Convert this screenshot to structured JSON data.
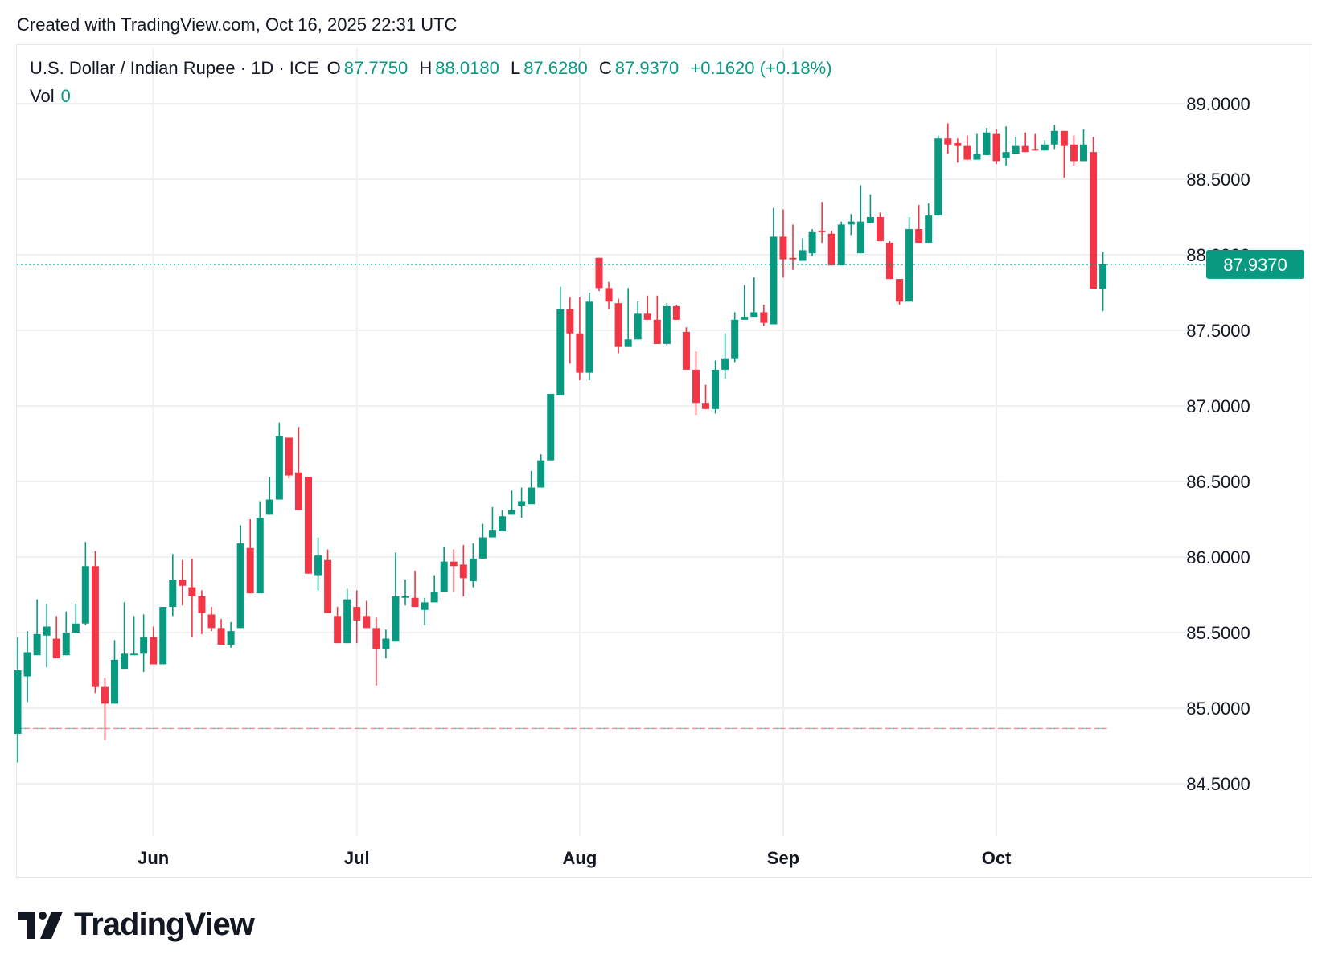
{
  "header": {
    "created_text": "Created with TradingView.com, Oct 16, 2025 22:31 UTC"
  },
  "legend": {
    "symbol": "U.S. Dollar / Indian Rupee · 1D · ICE",
    "open_label": "O",
    "open": "87.7750",
    "high_label": "H",
    "high": "88.0180",
    "low_label": "L",
    "low": "87.6280",
    "close_label": "C",
    "close": "87.9370",
    "change": "+0.1620 (+0.18%)",
    "vol_label": "Vol",
    "vol": "0"
  },
  "logo": {
    "text": "TradingView"
  },
  "colors": {
    "up": "#089981",
    "down": "#f23645",
    "grid": "#f0f0f0",
    "text": "#131722"
  },
  "chart_data": {
    "type": "candlestick",
    "ylim": [
      84.3,
      89.1
    ],
    "y_ticks": [
      "84.5000",
      "85.0000",
      "85.5000",
      "86.0000",
      "86.5000",
      "87.0000",
      "87.5000",
      "88.0000",
      "88.5000",
      "89.0000"
    ],
    "x_ticks": [
      {
        "label": "Jun",
        "date": "2025-06-02"
      },
      {
        "label": "Jul",
        "date": "2025-07-01"
      },
      {
        "label": "Aug",
        "date": "2025-08-01"
      },
      {
        "label": "Sep",
        "date": "2025-09-01"
      },
      {
        "label": "Oct",
        "date": "2025-10-01"
      }
    ],
    "last_price": 87.937,
    "last_price_label": "87.9370",
    "reference_line": 84.865,
    "grid": true,
    "columns": [
      "date",
      "open",
      "high",
      "low",
      "close"
    ],
    "candles": [
      [
        "2025-05-13",
        84.83,
        85.47,
        84.64,
        85.25
      ],
      [
        "2025-05-14",
        85.21,
        85.51,
        85.04,
        85.37
      ],
      [
        "2025-05-15",
        85.35,
        85.72,
        85.35,
        85.49
      ],
      [
        "2025-05-16",
        85.48,
        85.69,
        85.27,
        85.54
      ],
      [
        "2025-05-19",
        85.46,
        85.61,
        85.33,
        85.33
      ],
      [
        "2025-05-20",
        85.35,
        85.64,
        85.35,
        85.5
      ],
      [
        "2025-05-21",
        85.5,
        85.69,
        85.5,
        85.56
      ],
      [
        "2025-05-22",
        85.56,
        86.1,
        85.55,
        85.94
      ],
      [
        "2025-05-23",
        85.94,
        86.04,
        85.1,
        85.14
      ],
      [
        "2025-05-26",
        85.14,
        85.2,
        84.79,
        85.03
      ],
      [
        "2025-05-27",
        85.03,
        85.45,
        85.03,
        85.32
      ],
      [
        "2025-05-28",
        85.26,
        85.7,
        85.26,
        85.36
      ],
      [
        "2025-05-29",
        85.35,
        85.61,
        85.35,
        85.36
      ],
      [
        "2025-05-30",
        85.36,
        85.62,
        85.24,
        85.47
      ],
      [
        "2025-06-02",
        85.47,
        85.54,
        85.29,
        85.29
      ],
      [
        "2025-06-03",
        85.29,
        85.67,
        85.29,
        85.67
      ],
      [
        "2025-06-04",
        85.67,
        86.02,
        85.61,
        85.85
      ],
      [
        "2025-06-05",
        85.85,
        85.98,
        85.68,
        85.81
      ],
      [
        "2025-06-06",
        85.8,
        85.99,
        85.47,
        85.74
      ],
      [
        "2025-06-09",
        85.74,
        85.78,
        85.49,
        85.63
      ],
      [
        "2025-06-10",
        85.62,
        85.67,
        85.51,
        85.53
      ],
      [
        "2025-06-11",
        85.53,
        85.59,
        85.42,
        85.42
      ],
      [
        "2025-06-12",
        85.42,
        85.57,
        85.4,
        85.51
      ],
      [
        "2025-06-13",
        85.53,
        86.21,
        85.53,
        86.09
      ],
      [
        "2025-06-16",
        86.06,
        86.25,
        85.76,
        85.76
      ],
      [
        "2025-06-17",
        85.76,
        86.37,
        85.76,
        86.26
      ],
      [
        "2025-06-18",
        86.28,
        86.53,
        86.28,
        86.38
      ],
      [
        "2025-06-19",
        86.38,
        86.89,
        86.38,
        86.8
      ],
      [
        "2025-06-20",
        86.79,
        86.79,
        86.52,
        86.54
      ],
      [
        "2025-06-23",
        86.56,
        86.86,
        86.31,
        86.31
      ],
      [
        "2025-06-24",
        86.53,
        86.53,
        85.89,
        85.89
      ],
      [
        "2025-06-25",
        85.88,
        86.13,
        85.78,
        86.01
      ],
      [
        "2025-06-26",
        85.98,
        86.05,
        85.63,
        85.63
      ],
      [
        "2025-06-27",
        85.61,
        85.67,
        85.43,
        85.43
      ],
      [
        "2025-06-30",
        85.43,
        85.79,
        85.43,
        85.72
      ],
      [
        "2025-07-01",
        85.67,
        85.78,
        85.43,
        85.58
      ],
      [
        "2025-07-02",
        85.61,
        85.71,
        85.53,
        85.53
      ],
      [
        "2025-07-03",
        85.53,
        85.6,
        85.15,
        85.39
      ],
      [
        "2025-07-04",
        85.39,
        85.52,
        85.33,
        85.46
      ],
      [
        "2025-07-07",
        85.44,
        86.03,
        85.44,
        85.74
      ],
      [
        "2025-07-08",
        85.73,
        85.85,
        85.68,
        85.74
      ],
      [
        "2025-07-09",
        85.73,
        85.91,
        85.67,
        85.67
      ],
      [
        "2025-07-10",
        85.65,
        85.73,
        85.55,
        85.7
      ],
      [
        "2025-07-11",
        85.7,
        85.88,
        85.7,
        85.77
      ],
      [
        "2025-07-14",
        85.77,
        86.07,
        85.77,
        85.97
      ],
      [
        "2025-07-15",
        85.97,
        86.05,
        85.77,
        85.94
      ],
      [
        "2025-07-16",
        85.95,
        86.08,
        85.74,
        85.86
      ],
      [
        "2025-07-17",
        85.84,
        86.09,
        85.8,
        85.99
      ],
      [
        "2025-07-18",
        85.99,
        86.22,
        85.99,
        86.13
      ],
      [
        "2025-07-21",
        86.13,
        86.33,
        86.13,
        86.18
      ],
      [
        "2025-07-22",
        86.17,
        86.31,
        86.17,
        86.27
      ],
      [
        "2025-07-23",
        86.28,
        86.44,
        86.28,
        86.31
      ],
      [
        "2025-07-24",
        86.34,
        86.46,
        86.26,
        86.37
      ],
      [
        "2025-07-25",
        86.35,
        86.57,
        86.35,
        86.46
      ],
      [
        "2025-07-28",
        86.46,
        86.68,
        86.46,
        86.64
      ],
      [
        "2025-07-29",
        86.64,
        87.08,
        86.64,
        87.08
      ],
      [
        "2025-07-30",
        87.07,
        87.79,
        87.07,
        87.64
      ],
      [
        "2025-07-31",
        87.64,
        87.72,
        87.28,
        87.48
      ],
      [
        "2025-08-01",
        87.48,
        87.72,
        87.17,
        87.22
      ],
      [
        "2025-08-04",
        87.22,
        87.75,
        87.17,
        87.69
      ],
      [
        "2025-08-05",
        87.98,
        87.98,
        87.76,
        87.78
      ],
      [
        "2025-08-06",
        87.78,
        87.82,
        87.64,
        87.69
      ],
      [
        "2025-08-07",
        87.68,
        87.71,
        87.35,
        87.39
      ],
      [
        "2025-08-08",
        87.39,
        87.78,
        87.39,
        87.44
      ],
      [
        "2025-08-11",
        87.44,
        87.69,
        87.44,
        87.61
      ],
      [
        "2025-08-12",
        87.61,
        87.73,
        87.57,
        87.57
      ],
      [
        "2025-08-13",
        87.57,
        87.73,
        87.41,
        87.41
      ],
      [
        "2025-08-14",
        87.41,
        87.68,
        87.4,
        87.66
      ],
      [
        "2025-08-15",
        87.66,
        87.67,
        87.57,
        87.57
      ],
      [
        "2025-08-18",
        87.49,
        87.52,
        87.24,
        87.24
      ],
      [
        "2025-08-19",
        87.24,
        87.36,
        86.94,
        87.02
      ],
      [
        "2025-08-20",
        87.02,
        87.14,
        86.98,
        86.98
      ],
      [
        "2025-08-21",
        86.98,
        87.3,
        86.95,
        87.24
      ],
      [
        "2025-08-22",
        87.24,
        87.48,
        87.18,
        87.31
      ],
      [
        "2025-08-25",
        87.31,
        87.62,
        87.29,
        87.57
      ],
      [
        "2025-08-26",
        87.57,
        87.8,
        87.57,
        87.59
      ],
      [
        "2025-08-27",
        87.59,
        87.85,
        87.59,
        87.62
      ],
      [
        "2025-08-28",
        87.62,
        87.67,
        87.53,
        87.55
      ],
      [
        "2025-08-29",
        87.54,
        88.31,
        87.54,
        88.12
      ],
      [
        "2025-09-01",
        88.12,
        88.3,
        87.85,
        87.97
      ],
      [
        "2025-09-02",
        87.98,
        88.2,
        87.9,
        87.97
      ],
      [
        "2025-09-03",
        87.96,
        88.11,
        87.96,
        88.03
      ],
      [
        "2025-09-04",
        88.01,
        88.17,
        87.99,
        88.15
      ],
      [
        "2025-09-05",
        88.16,
        88.35,
        88.08,
        88.15
      ],
      [
        "2025-09-08",
        88.14,
        88.16,
        87.93,
        87.93
      ],
      [
        "2025-09-09",
        87.93,
        88.22,
        87.93,
        88.2
      ],
      [
        "2025-09-10",
        88.2,
        88.27,
        88.13,
        88.22
      ],
      [
        "2025-09-11",
        88.01,
        88.46,
        88.01,
        88.22
      ],
      [
        "2025-09-12",
        88.21,
        88.4,
        88.21,
        88.25
      ],
      [
        "2025-09-15",
        88.25,
        88.28,
        88.09,
        88.09
      ],
      [
        "2025-09-16",
        88.08,
        88.09,
        87.84,
        87.84
      ],
      [
        "2025-09-17",
        87.84,
        87.84,
        87.67,
        87.69
      ],
      [
        "2025-09-18",
        87.69,
        88.25,
        87.69,
        88.17
      ],
      [
        "2025-09-19",
        88.17,
        88.33,
        88.08,
        88.08
      ],
      [
        "2025-09-22",
        88.08,
        88.34,
        88.08,
        88.26
      ],
      [
        "2025-09-23",
        88.26,
        88.79,
        88.26,
        88.77
      ],
      [
        "2025-09-24",
        88.77,
        88.87,
        88.67,
        88.73
      ],
      [
        "2025-09-25",
        88.74,
        88.77,
        88.61,
        88.72
      ],
      [
        "2025-09-26",
        88.72,
        88.79,
        88.63,
        88.63
      ],
      [
        "2025-09-29",
        88.63,
        88.8,
        88.63,
        88.67
      ],
      [
        "2025-09-30",
        88.66,
        88.84,
        88.66,
        88.81
      ],
      [
        "2025-10-01",
        88.8,
        88.83,
        88.6,
        88.62
      ],
      [
        "2025-10-02",
        88.64,
        88.85,
        88.59,
        88.68
      ],
      [
        "2025-10-03",
        88.67,
        88.78,
        88.67,
        88.72
      ],
      [
        "2025-10-06",
        88.72,
        88.81,
        88.68,
        88.68
      ],
      [
        "2025-10-07",
        88.7,
        88.8,
        88.69,
        88.69
      ],
      [
        "2025-10-08",
        88.69,
        88.76,
        88.69,
        88.73
      ],
      [
        "2025-10-09",
        88.73,
        88.86,
        88.7,
        88.82
      ],
      [
        "2025-10-10",
        88.82,
        88.82,
        88.51,
        88.72
      ],
      [
        "2025-10-13",
        88.73,
        88.79,
        88.59,
        88.62
      ],
      [
        "2025-10-14",
        88.62,
        88.83,
        88.62,
        88.73
      ],
      [
        "2025-10-15",
        88.68,
        88.78,
        87.775,
        87.775
      ],
      [
        "2025-10-16",
        87.775,
        88.018,
        87.628,
        87.937
      ]
    ]
  }
}
